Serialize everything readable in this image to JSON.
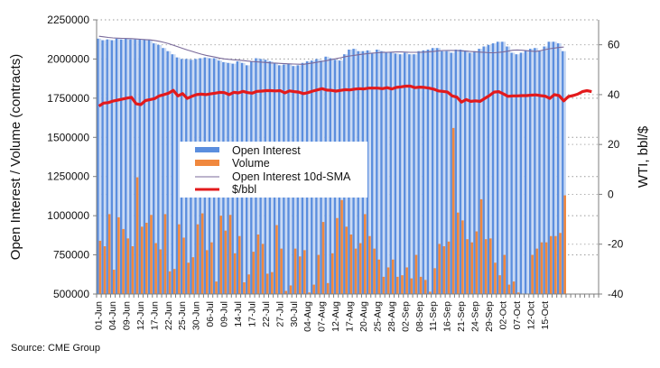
{
  "chart_data": {
    "type": "bar",
    "title": "",
    "ylabel": "Open Interest / Volume (contracts)",
    "y2label": "WTI, bbl/$",
    "ylim": [
      500000,
      2250000
    ],
    "y2lim": [
      -40,
      70
    ],
    "yticks": [
      500000,
      750000,
      1000000,
      1250000,
      1500000,
      1750000,
      2000000,
      2250000
    ],
    "yticklabels": [
      "500000",
      "750000",
      "1000000",
      "1250000",
      "1500000",
      "1750000",
      "2000000",
      "2250000"
    ],
    "y2ticks": [
      -40,
      -20,
      0,
      20,
      40,
      60
    ],
    "y2ticklabels": [
      "-40",
      "-20",
      "0",
      "20",
      "40",
      "60"
    ],
    "grid": true,
    "legend_position": "center-left",
    "x_slots": 108,
    "xticklabels": [
      "01-Jun",
      "04-Jun",
      "09-Jun",
      "12-Jun",
      "17-Jun",
      "22-Jun",
      "25-Jun",
      "30-Jun",
      "06-Jul",
      "09-Jul",
      "14-Jul",
      "17-Jul",
      "22-Jul",
      "27-Jul",
      "30-Jul",
      "04-Aug",
      "07-Aug",
      "12-Aug",
      "17-Aug",
      "20-Aug",
      "25-Aug",
      "28-Aug",
      "02-Sep",
      "08-Sep",
      "11-Sep",
      "16-Sep",
      "21-Sep",
      "24-Sep",
      "29-Sep",
      "02-Oct",
      "07-Oct",
      "12-Oct",
      "15-Oct"
    ],
    "series": [
      {
        "name": "Open Interest",
        "type": "bar",
        "axis": "left",
        "color": "#5b8ede",
        "values": [
          2130000,
          2120000,
          2125000,
          2120000,
          2130000,
          2125000,
          2130000,
          2125000,
          2125000,
          2125000,
          2125000,
          2120000,
          2100000,
          2090000,
          2070000,
          2050000,
          2030000,
          2010000,
          2000000,
          2000000,
          1995000,
          2000000,
          2005000,
          2010000,
          2005000,
          2005000,
          1990000,
          1980000,
          1975000,
          1970000,
          1985000,
          1975000,
          1960000,
          1985000,
          2005000,
          2000000,
          1995000,
          1985000,
          1975000,
          1960000,
          1965000,
          1970000,
          1955000,
          1960000,
          1975000,
          1985000,
          1990000,
          2000000,
          1990000,
          2015000,
          2005000,
          1995000,
          1990000,
          2030000,
          2060000,
          2065000,
          2050000,
          2050000,
          2055000,
          2035000,
          2060000,
          2050000,
          2040000,
          2045000,
          2035000,
          2030000,
          2040000,
          2030000,
          2030000,
          2050000,
          2055000,
          2060000,
          2070000,
          2070000,
          2050000,
          2050000,
          2040000,
          2060000,
          2060000,
          2055000,
          2040000,
          2050000,
          2065000,
          2080000,
          2090000,
          2100000,
          2110000,
          2110000,
          2080000,
          2040000,
          2030000,
          2040000,
          2055000,
          2065000,
          2070000,
          2050000,
          2080000,
          2110000,
          2110000,
          2100000,
          2050000
        ]
      },
      {
        "name": "Volume",
        "type": "bar",
        "axis": "left",
        "color": "#f0883e",
        "values": [
          840000,
          805000,
          1010000,
          655000,
          990000,
          915000,
          855000,
          805000,
          1245000,
          930000,
          955000,
          1005000,
          825000,
          785000,
          1010000,
          645000,
          660000,
          945000,
          860000,
          700000,
          735000,
          945000,
          1015000,
          780000,
          830000,
          580000,
          1000000,
          905000,
          1005000,
          760000,
          870000,
          575000,
          625000,
          770000,
          880000,
          820000,
          630000,
          640000,
          940000,
          790000,
          520000,
          555000,
          790000,
          740000,
          780000,
          510000,
          560000,
          750000,
          960000,
          570000,
          760000,
          985000,
          1100000,
          930000,
          880000,
          790000,
          825000,
          1010000,
          870000,
          790000,
          720000,
          610000,
          670000,
          720000,
          610000,
          620000,
          670000,
          600000,
          750000,
          610000,
          590000,
          515000,
          665000,
          820000,
          805000,
          835000,
          1560000,
          1020000,
          970000,
          850000,
          830000,
          900000,
          1105000,
          850000,
          855000,
          700000,
          620000,
          750000,
          560000,
          580000,
          510000,
          490000,
          500000,
          750000,
          790000,
          830000,
          830000,
          870000,
          870000,
          890000,
          1130000
        ]
      },
      {
        "name": "Open Interest 10d-SMA",
        "type": "line",
        "axis": "left",
        "color": "#7a6a9a",
        "values": [
          2145000,
          2142000,
          2138000,
          2135000,
          2133000,
          2132000,
          2131000,
          2130000,
          2128000,
          2126000,
          2124000,
          2122000,
          2118000,
          2113000,
          2106000,
          2098000,
          2088000,
          2078000,
          2068000,
          2058000,
          2049000,
          2040000,
          2031000,
          2024000,
          2018000,
          2012000,
          2006000,
          2001000,
          1998000,
          1995000,
          1993000,
          1990000,
          1987000,
          1984000,
          1982000,
          1980000,
          1978000,
          1975000,
          1974000,
          1972000,
          1970000,
          1969000,
          1968000,
          1967000,
          1966000,
          1970000,
          1975000,
          1980000,
          1985000,
          1990000,
          1996000,
          2002000,
          2008000,
          2015000,
          2020000,
          2024000,
          2028000,
          2032000,
          2035000,
          2038000,
          2040000,
          2042000,
          2043000,
          2044000,
          2045000,
          2045000,
          2044000,
          2043000,
          2043000,
          2043000,
          2044000,
          2046000,
          2048000,
          2052000,
          2054000,
          2055000,
          2055000,
          2054000,
          2052000,
          2050000,
          2048000,
          2046000,
          2044000,
          2042000,
          2040000,
          2040000,
          2042000,
          2045000,
          2050000,
          2056000,
          2058000,
          2056000,
          2053000,
          2050000,
          2048000,
          2053000,
          2060000,
          2066000,
          2070000,
          2074000,
          2076000
        ]
      },
      {
        "name": "$/bbl",
        "type": "line",
        "axis": "right",
        "color": "#e31a1c",
        "values": [
          35.4,
          36.6,
          36.8,
          37.4,
          37.8,
          38.2,
          38.6,
          38.9,
          36.3,
          36.0,
          37.6,
          38.0,
          38.4,
          39.5,
          40.0,
          40.6,
          41.7,
          39.5,
          40.4,
          38.5,
          39.3,
          40.0,
          40.2,
          40.0,
          40.3,
          40.6,
          40.9,
          40.8,
          40.0,
          40.9,
          40.7,
          41.3,
          40.8,
          40.6,
          41.3,
          41.4,
          41.6,
          41.6,
          41.5,
          41.6,
          40.7,
          41.5,
          41.2,
          41.0,
          40.4,
          40.8,
          41.4,
          41.9,
          42.4,
          41.8,
          41.7,
          41.4,
          41.7,
          42.0,
          41.9,
          42.2,
          42.4,
          42.3,
          42.6,
          42.6,
          42.6,
          42.4,
          42.8,
          42.3,
          42.9,
          43.1,
          43.4,
          43.4,
          42.8,
          43.0,
          42.9,
          42.6,
          42.2,
          41.5,
          41.3,
          41.0,
          39.5,
          39.0,
          37.0,
          38.0,
          37.3,
          37.5,
          37.3,
          38.5,
          39.6,
          41.0,
          41.2,
          40.3,
          39.3,
          39.5,
          39.5,
          39.6,
          39.6,
          39.8,
          39.9,
          39.6,
          39.4,
          38.5,
          40.0,
          39.6,
          37.5,
          39.2,
          39.6,
          40.2,
          41.2,
          41.6,
          41.2
        ]
      }
    ]
  },
  "legend": {
    "items": [
      {
        "label": "Open Interest",
        "color": "#5b8ede",
        "kind": "bar"
      },
      {
        "label": "Volume",
        "color": "#f0883e",
        "kind": "bar"
      },
      {
        "label": "Open Interest 10d-SMA",
        "color": "#7a6a9a",
        "kind": "thin-line"
      },
      {
        "label": "$/bbl",
        "color": "#e31a1c",
        "kind": "thick-line"
      }
    ]
  },
  "source": "Source: CME Group"
}
